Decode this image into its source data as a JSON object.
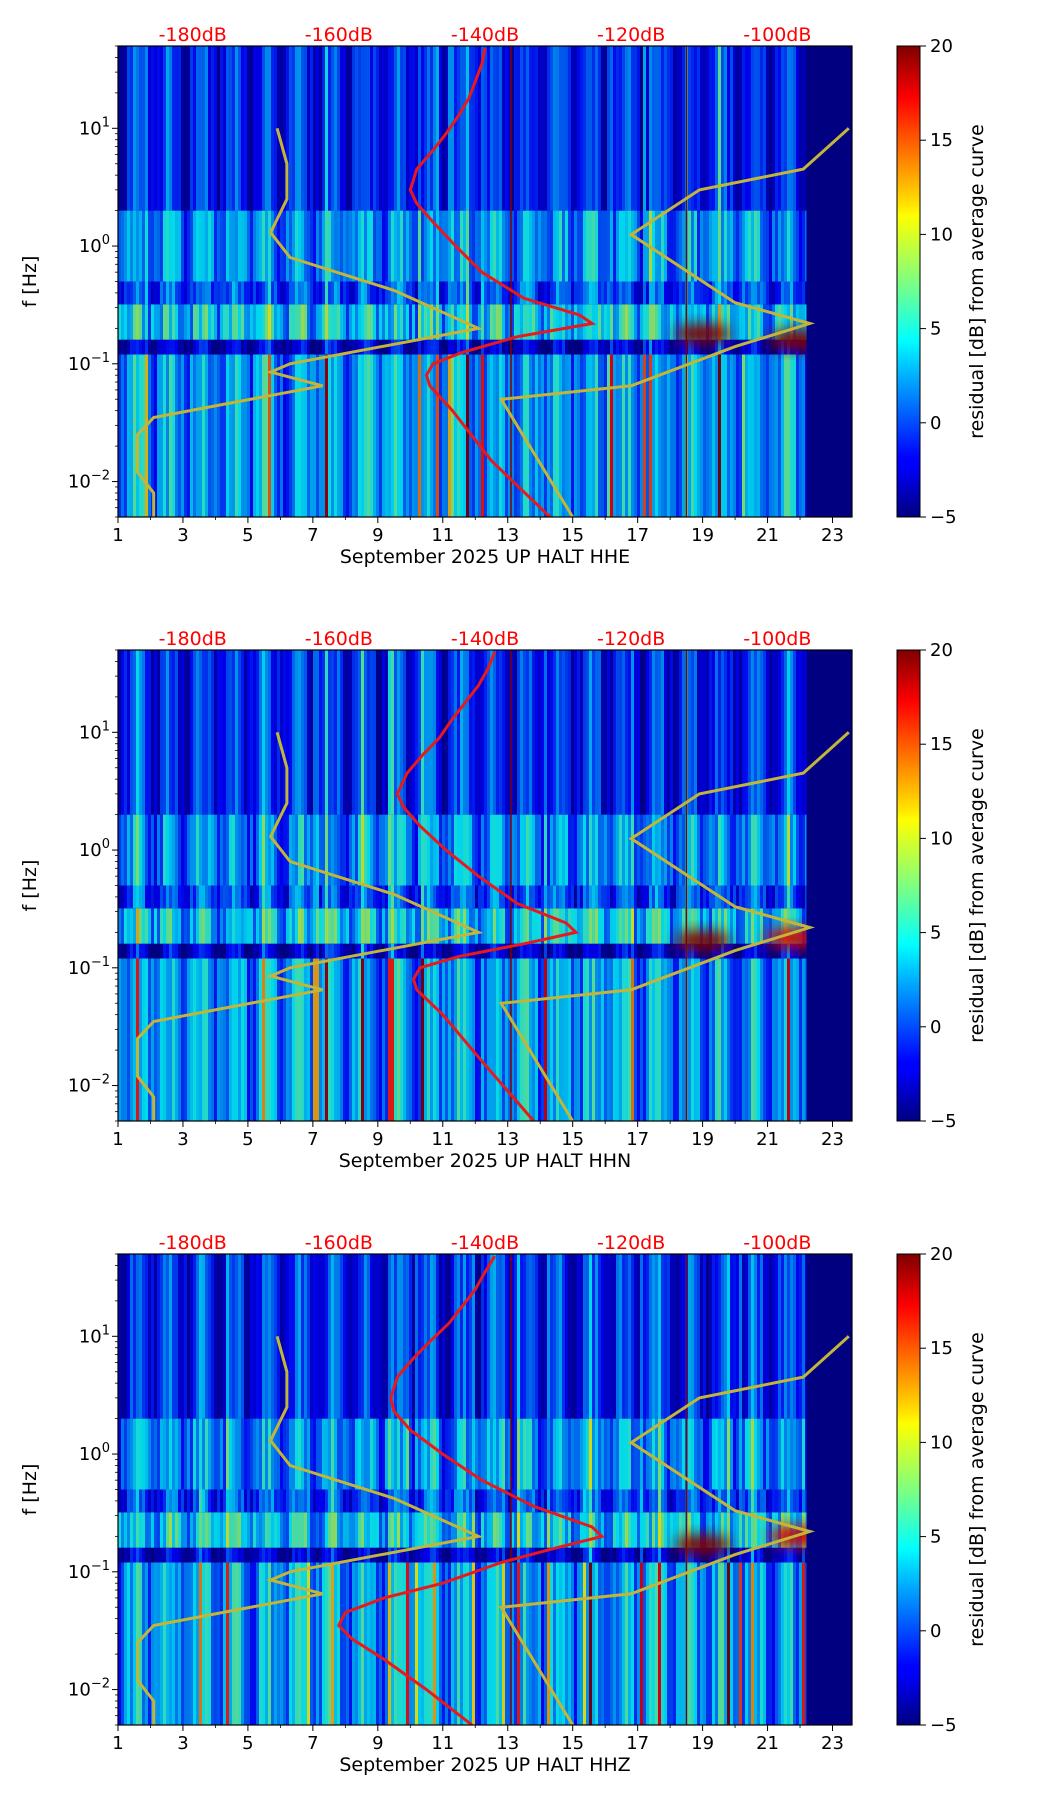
{
  "colors": {
    "red_curve": "#e8191e",
    "model_curve": "#c2b53a",
    "top_label": "#ff0000",
    "background_spec": "#00007f"
  },
  "chart_data": [
    {
      "type": "heatmap",
      "subtitle": "September 2025 UP HALT  HHE",
      "xlabel": "September 2025 UP HALT  HHE",
      "ylabel": "f [Hz]",
      "xlim": [
        1,
        23.6
      ],
      "ylim": [
        0.005,
        50
      ],
      "yscale": "log",
      "xticks": [
        1,
        3,
        5,
        7,
        9,
        11,
        13,
        15,
        17,
        19,
        21,
        23
      ],
      "yticks": [
        {
          "value": 0.01,
          "label": "10",
          "exp": "−2"
        },
        {
          "value": 0.1,
          "label": "10",
          "exp": "−1"
        },
        {
          "value": 1,
          "label": "10",
          "exp": "0"
        },
        {
          "value": 10,
          "label": "10",
          "exp": "1"
        }
      ],
      "top_labels": [
        {
          "x": 3.3,
          "text": "-180dB"
        },
        {
          "x": 7.8,
          "text": "-160dB"
        },
        {
          "x": 12.3,
          "text": "-140dB"
        },
        {
          "x": 16.8,
          "text": "-120dB"
        },
        {
          "x": 21.3,
          "text": "-100dB"
        }
      ],
      "colorbar": {
        "label": "residual [dB] from average curve",
        "min": -5,
        "max": 20,
        "ticks": [
          -5,
          0,
          5,
          10,
          15,
          20
        ]
      },
      "data_end_day": 22.2,
      "red_curve": [
        [
          14.3,
          0.005
        ],
        [
          12.5,
          0.015
        ],
        [
          11.3,
          0.04
        ],
        [
          10.6,
          0.065
        ],
        [
          10.5,
          0.08
        ],
        [
          10.7,
          0.1
        ],
        [
          11.6,
          0.125
        ],
        [
          13.3,
          0.17
        ],
        [
          15.6,
          0.22
        ],
        [
          15.2,
          0.26
        ],
        [
          13.5,
          0.36
        ],
        [
          12.2,
          0.6
        ],
        [
          11.4,
          1.0
        ],
        [
          10.7,
          1.6
        ],
        [
          10.2,
          2.3
        ],
        [
          10.0,
          3.0
        ],
        [
          10.2,
          4.5
        ],
        [
          10.7,
          6.5
        ],
        [
          11.1,
          9.0
        ],
        [
          11.5,
          13.0
        ],
        [
          11.8,
          18.0
        ],
        [
          12.0,
          25.0
        ],
        [
          12.2,
          35.0
        ],
        [
          12.3,
          48.0
        ]
      ],
      "model_curve_left": [
        [
          2.1,
          0.005
        ],
        [
          2.1,
          0.008
        ],
        [
          1.6,
          0.012
        ],
        [
          1.6,
          0.025
        ],
        [
          2.1,
          0.035
        ],
        [
          4.2,
          0.045
        ],
        [
          7.3,
          0.065
        ],
        [
          5.7,
          0.085
        ],
        [
          6.3,
          0.1
        ],
        [
          12.1,
          0.2
        ],
        [
          9.5,
          0.42
        ],
        [
          6.3,
          0.8
        ],
        [
          5.7,
          1.3
        ],
        [
          6.2,
          2.5
        ],
        [
          6.2,
          5.0
        ],
        [
          5.9,
          10.0
        ]
      ],
      "model_curve_right": [
        [
          15.0,
          0.005
        ],
        [
          12.8,
          0.05
        ],
        [
          16.8,
          0.065
        ],
        [
          20.0,
          0.14
        ],
        [
          22.3,
          0.22
        ],
        [
          20.0,
          0.33
        ],
        [
          16.8,
          1.25
        ],
        [
          18.9,
          3.0
        ],
        [
          22.1,
          4.5
        ],
        [
          23.5,
          10.0
        ]
      ],
      "hot_spots": [
        {
          "day": 19.0,
          "f": 0.18,
          "value": 20
        },
        {
          "day": 21.9,
          "f": 0.16,
          "value": 20
        }
      ]
    },
    {
      "type": "heatmap",
      "subtitle": "September 2025 UP HALT  HHN",
      "xlabel": "September 2025 UP HALT  HHN",
      "ylabel": "f [Hz]",
      "xlim": [
        1,
        23.6
      ],
      "ylim": [
        0.005,
        50
      ],
      "yscale": "log",
      "xticks": [
        1,
        3,
        5,
        7,
        9,
        11,
        13,
        15,
        17,
        19,
        21,
        23
      ],
      "yticks": [
        {
          "value": 0.01,
          "label": "10",
          "exp": "−2"
        },
        {
          "value": 0.1,
          "label": "10",
          "exp": "−1"
        },
        {
          "value": 1,
          "label": "10",
          "exp": "0"
        },
        {
          "value": 10,
          "label": "10",
          "exp": "1"
        }
      ],
      "top_labels": [
        {
          "x": 3.3,
          "text": "-180dB"
        },
        {
          "x": 7.8,
          "text": "-160dB"
        },
        {
          "x": 12.3,
          "text": "-140dB"
        },
        {
          "x": 16.8,
          "text": "-120dB"
        },
        {
          "x": 21.3,
          "text": "-100dB"
        }
      ],
      "colorbar": {
        "label": "residual [dB] from average curve",
        "min": -5,
        "max": 20,
        "ticks": [
          -5,
          0,
          5,
          10,
          15,
          20
        ]
      },
      "data_end_day": 22.2,
      "red_curve": [
        [
          13.8,
          0.005
        ],
        [
          12.3,
          0.015
        ],
        [
          11.0,
          0.04
        ],
        [
          10.2,
          0.065
        ],
        [
          10.1,
          0.08
        ],
        [
          10.3,
          0.1
        ],
        [
          11.5,
          0.125
        ],
        [
          13.5,
          0.16
        ],
        [
          15.1,
          0.2
        ],
        [
          14.8,
          0.24
        ],
        [
          13.3,
          0.35
        ],
        [
          12.1,
          0.6
        ],
        [
          11.1,
          1.0
        ],
        [
          10.3,
          1.6
        ],
        [
          9.8,
          2.3
        ],
        [
          9.6,
          3.0
        ],
        [
          9.9,
          4.5
        ],
        [
          10.4,
          6.5
        ],
        [
          10.9,
          9.0
        ],
        [
          11.3,
          13.0
        ],
        [
          11.7,
          18.0
        ],
        [
          12.1,
          25.0
        ],
        [
          12.4,
          35.0
        ],
        [
          12.6,
          48.0
        ]
      ],
      "model_curve_left": [
        [
          2.1,
          0.005
        ],
        [
          2.1,
          0.008
        ],
        [
          1.6,
          0.012
        ],
        [
          1.6,
          0.025
        ],
        [
          2.1,
          0.035
        ],
        [
          4.2,
          0.045
        ],
        [
          7.3,
          0.065
        ],
        [
          5.7,
          0.085
        ],
        [
          6.3,
          0.1
        ],
        [
          12.1,
          0.2
        ],
        [
          9.5,
          0.42
        ],
        [
          6.3,
          0.8
        ],
        [
          5.7,
          1.3
        ],
        [
          6.2,
          2.5
        ],
        [
          6.2,
          5.0
        ],
        [
          5.9,
          10.0
        ]
      ],
      "model_curve_right": [
        [
          15.0,
          0.005
        ],
        [
          12.8,
          0.05
        ],
        [
          16.8,
          0.065
        ],
        [
          20.0,
          0.14
        ],
        [
          22.3,
          0.22
        ],
        [
          20.0,
          0.33
        ],
        [
          16.8,
          1.25
        ],
        [
          18.9,
          3.0
        ],
        [
          22.1,
          4.5
        ],
        [
          23.5,
          10.0
        ]
      ],
      "hot_spots": [
        {
          "day": 19.0,
          "f": 0.17,
          "value": 20
        },
        {
          "day": 21.8,
          "f": 0.18,
          "value": 18
        }
      ]
    },
    {
      "type": "heatmap",
      "subtitle": "September 2025 UP HALT  HHZ",
      "xlabel": "September 2025 UP HALT  HHZ",
      "ylabel": "f [Hz]",
      "xlim": [
        1,
        23.6
      ],
      "ylim": [
        0.005,
        50
      ],
      "yscale": "log",
      "xticks": [
        1,
        3,
        5,
        7,
        9,
        11,
        13,
        15,
        17,
        19,
        21,
        23
      ],
      "yticks": [
        {
          "value": 0.01,
          "label": "10",
          "exp": "−2"
        },
        {
          "value": 0.1,
          "label": "10",
          "exp": "−1"
        },
        {
          "value": 1,
          "label": "10",
          "exp": "0"
        },
        {
          "value": 10,
          "label": "10",
          "exp": "1"
        }
      ],
      "top_labels": [
        {
          "x": 3.3,
          "text": "-180dB"
        },
        {
          "x": 7.8,
          "text": "-160dB"
        },
        {
          "x": 12.3,
          "text": "-140dB"
        },
        {
          "x": 16.8,
          "text": "-120dB"
        },
        {
          "x": 21.3,
          "text": "-100dB"
        }
      ],
      "colorbar": {
        "label": "residual [dB] from average curve",
        "min": -5,
        "max": 20,
        "ticks": [
          -5,
          0,
          5,
          10,
          15,
          20
        ]
      },
      "data_end_day": 22.2,
      "red_curve": [
        [
          11.9,
          0.005
        ],
        [
          10.5,
          0.01
        ],
        [
          9.2,
          0.018
        ],
        [
          8.2,
          0.027
        ],
        [
          7.8,
          0.035
        ],
        [
          8.0,
          0.045
        ],
        [
          9.2,
          0.06
        ],
        [
          11.0,
          0.08
        ],
        [
          12.8,
          0.12
        ],
        [
          14.5,
          0.16
        ],
        [
          15.9,
          0.2
        ],
        [
          15.6,
          0.24
        ],
        [
          13.8,
          0.36
        ],
        [
          12.2,
          0.6
        ],
        [
          11.0,
          1.0
        ],
        [
          10.0,
          1.6
        ],
        [
          9.5,
          2.3
        ],
        [
          9.4,
          3.0
        ],
        [
          9.6,
          4.5
        ],
        [
          10.1,
          6.5
        ],
        [
          10.6,
          9.0
        ],
        [
          11.2,
          13.0
        ],
        [
          11.6,
          18.0
        ],
        [
          12.0,
          25.0
        ],
        [
          12.3,
          35.0
        ],
        [
          12.6,
          48.0
        ]
      ],
      "model_curve_left": [
        [
          2.1,
          0.005
        ],
        [
          2.1,
          0.008
        ],
        [
          1.6,
          0.012
        ],
        [
          1.6,
          0.025
        ],
        [
          2.1,
          0.035
        ],
        [
          4.2,
          0.045
        ],
        [
          7.3,
          0.065
        ],
        [
          5.7,
          0.085
        ],
        [
          6.3,
          0.1
        ],
        [
          12.1,
          0.2
        ],
        [
          9.5,
          0.42
        ],
        [
          6.3,
          0.8
        ],
        [
          5.7,
          1.3
        ],
        [
          6.2,
          2.5
        ],
        [
          6.2,
          5.0
        ],
        [
          5.9,
          10.0
        ]
      ],
      "model_curve_right": [
        [
          15.0,
          0.005
        ],
        [
          12.8,
          0.05
        ],
        [
          16.8,
          0.065
        ],
        [
          20.0,
          0.14
        ],
        [
          22.3,
          0.22
        ],
        [
          20.0,
          0.33
        ],
        [
          16.8,
          1.25
        ],
        [
          18.9,
          3.0
        ],
        [
          22.1,
          4.5
        ],
        [
          23.5,
          10.0
        ]
      ],
      "hot_spots": [
        {
          "day": 19.0,
          "f": 0.17,
          "value": 20
        },
        {
          "day": 21.9,
          "f": 0.2,
          "value": 18
        }
      ]
    }
  ]
}
